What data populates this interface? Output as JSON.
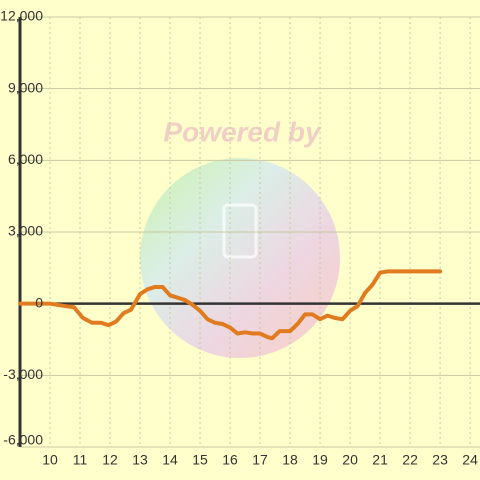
{
  "chart_data": {
    "type": "line",
    "watermark": "Powered by",
    "xlim": [
      9,
      24.33
    ],
    "xticks": [
      10,
      11,
      12,
      13,
      14,
      15,
      16,
      17,
      18,
      19,
      20,
      21,
      22,
      23,
      24
    ],
    "ylim": [
      -6000,
      12000
    ],
    "yticks": [
      {
        "value": -6000,
        "label": "-6,000"
      },
      {
        "value": -3000,
        "label": "-3,000"
      },
      0,
      {
        "value": 3000,
        "label": "3,000"
      },
      {
        "value": 6000,
        "label": "6,000"
      },
      {
        "value": 9000,
        "label": "9,000"
      },
      {
        "value": 12000,
        "label": "12,000"
      }
    ],
    "grid": true,
    "series": [
      {
        "color": "#e07b20",
        "x": [
          9,
          10,
          10.5,
          10.8,
          11.1,
          11.4,
          11.7,
          11.95,
          12.2,
          12.45,
          12.7,
          13,
          13.25,
          13.5,
          13.75,
          14,
          14.25,
          14.5,
          14.75,
          15,
          15.25,
          15.5,
          15.75,
          16,
          16.25,
          16.5,
          16.75,
          17,
          17.25,
          17.4,
          17.65,
          18,
          18.25,
          18.5,
          18.75,
          19,
          19.25,
          19.5,
          19.75,
          20,
          20.25,
          20.5,
          20.75,
          21,
          21.25,
          23
        ],
        "values": [
          0,
          0,
          -100,
          -150,
          -600,
          -800,
          -800,
          -900,
          -750,
          -400,
          -250,
          400,
          600,
          700,
          700,
          350,
          250,
          150,
          -50,
          -300,
          -650,
          -800,
          -850,
          -1000,
          -1250,
          -1200,
          -1250,
          -1250,
          -1400,
          -1450,
          -1150,
          -1150,
          -850,
          -450,
          -450,
          -650,
          -500,
          -600,
          -650,
          -300,
          -100,
          450,
          800,
          1300,
          1350,
          1350
        ]
      }
    ]
  }
}
